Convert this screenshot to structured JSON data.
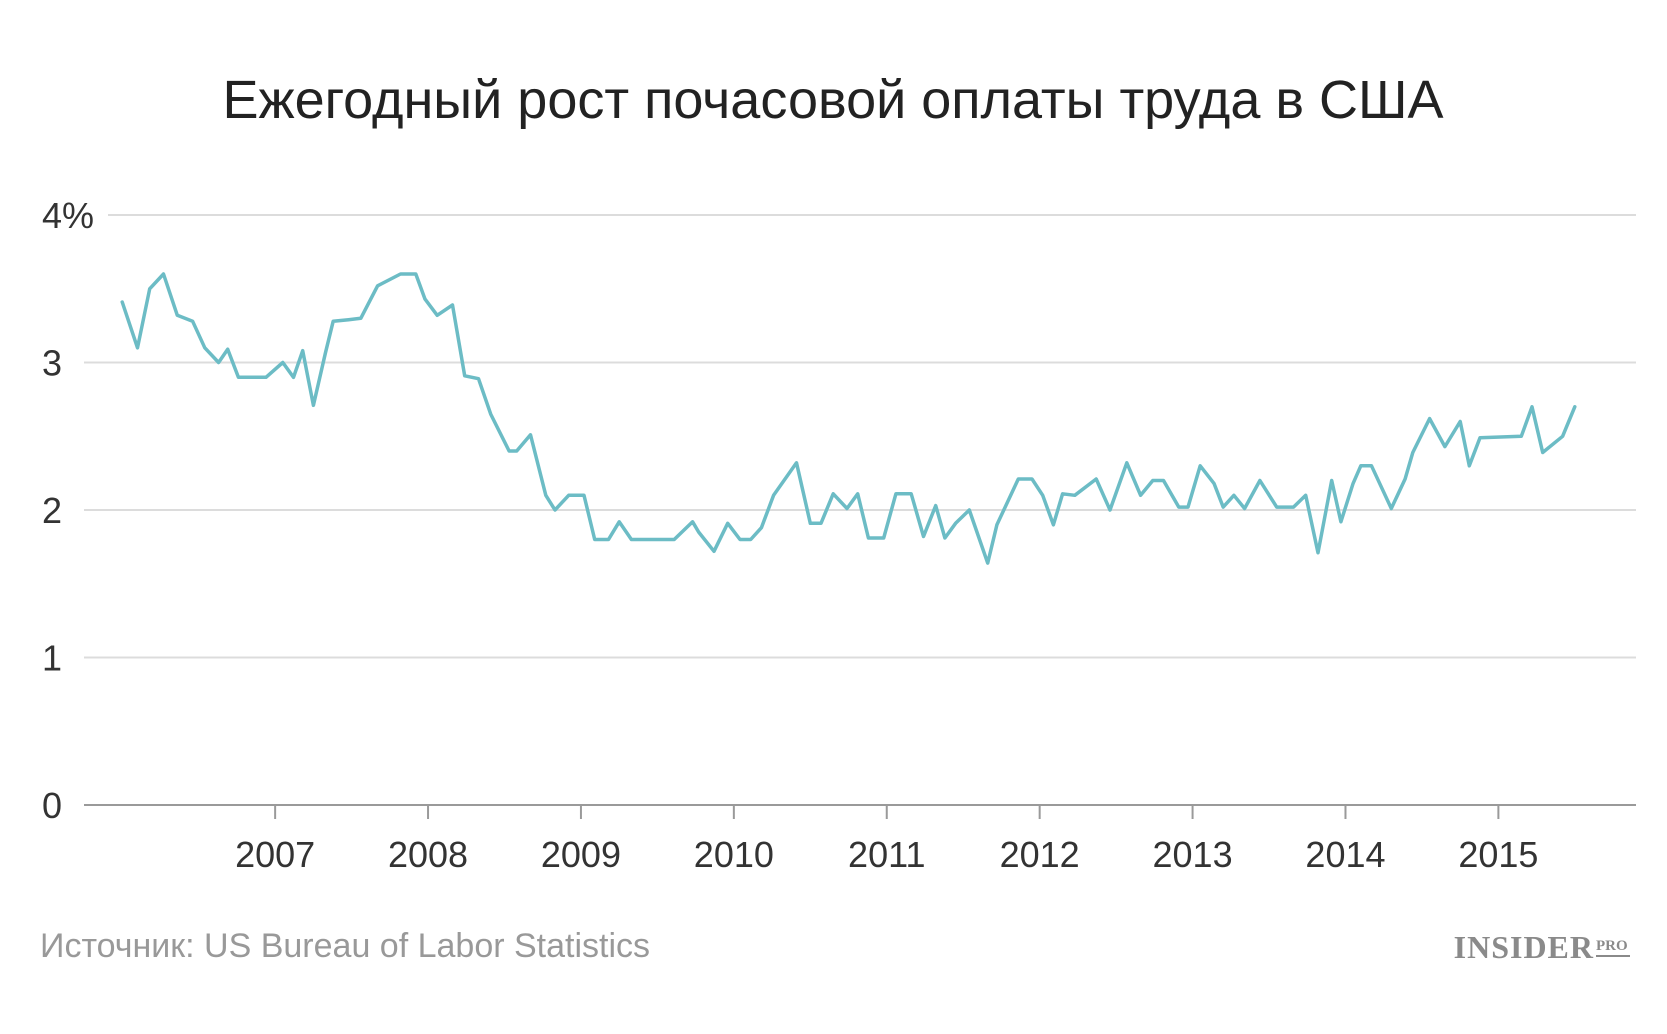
{
  "chart_data": {
    "type": "line",
    "title": "Ежегодный рост почасовой оплаты труда в США",
    "source": "Источник: US Bureau of Labor Statistics",
    "logo": {
      "main": "INSIDER",
      "sub": "PRO"
    },
    "ylim": [
      0,
      4
    ],
    "yticks": [
      {
        "value": 0,
        "label": "0"
      },
      {
        "value": 1,
        "label": "1"
      },
      {
        "value": 2,
        "label": "2"
      },
      {
        "value": 3,
        "label": "3"
      },
      {
        "value": 4,
        "label": "4%"
      }
    ],
    "xlim": [
      2005.75,
      2015.9
    ],
    "xticks": [
      {
        "value": 2007,
        "label": "2007"
      },
      {
        "value": 2008,
        "label": "2008"
      },
      {
        "value": 2009,
        "label": "2009"
      },
      {
        "value": 2010,
        "label": "2010"
      },
      {
        "value": 2011,
        "label": "2011"
      },
      {
        "value": 2012,
        "label": "2012"
      },
      {
        "value": 2013,
        "label": "2013"
      },
      {
        "value": 2014,
        "label": "2014"
      },
      {
        "value": 2015,
        "label": "2015"
      }
    ],
    "grid": true,
    "line_color": "#6cbcc5",
    "series": [
      {
        "x": [
          2006.0,
          2006.1,
          2006.18,
          2006.27,
          2006.36,
          2006.46,
          2006.54,
          2006.63,
          2006.69,
          2006.76,
          2006.86,
          2006.94,
          2007.05,
          2007.12,
          2007.18,
          2007.25,
          2007.33,
          2007.38,
          2007.48,
          2007.56,
          2007.67,
          2007.82,
          2007.92,
          2007.98,
          2008.06,
          2008.16,
          2008.24,
          2008.33,
          2008.41,
          2008.53,
          2008.58,
          2008.67,
          2008.77,
          2008.83,
          2008.92,
          2009.02,
          2009.09,
          2009.18,
          2009.25,
          2009.33,
          2009.45,
          2009.61,
          2009.73,
          2009.77,
          2009.87,
          2009.96,
          2010.04,
          2010.11,
          2010.18,
          2010.26,
          2010.41,
          2010.5,
          2010.57,
          2010.65,
          2010.74,
          2010.81,
          2010.88,
          2010.98,
          2011.06,
          2011.16,
          2011.24,
          2011.32,
          2011.38,
          2011.45,
          2011.54,
          2011.66,
          2011.72,
          2011.86,
          2011.95,
          2012.02,
          2012.09,
          2012.15,
          2012.23,
          2012.37,
          2012.46,
          2012.57,
          2012.66,
          2012.74,
          2012.81,
          2012.91,
          2012.97,
          2013.05,
          2013.14,
          2013.2,
          2013.27,
          2013.34,
          2013.44,
          2013.55,
          2013.66,
          2013.74,
          2013.82,
          2013.91,
          2013.97,
          2014.05,
          2014.1,
          2014.17,
          2014.3,
          2014.39,
          2014.44,
          2014.55,
          2014.65,
          2014.75,
          2014.81,
          2014.88,
          2015.15,
          2015.22,
          2015.29,
          2015.42,
          2015.5
        ],
        "values": [
          3.41,
          3.1,
          3.5,
          3.6,
          3.32,
          3.28,
          3.1,
          3.0,
          3.09,
          2.9,
          2.9,
          2.9,
          3.0,
          2.9,
          3.08,
          2.71,
          3.07,
          3.28,
          3.29,
          3.3,
          3.52,
          3.6,
          3.6,
          3.43,
          3.32,
          3.39,
          2.91,
          2.89,
          2.65,
          2.4,
          2.4,
          2.51,
          2.1,
          2.0,
          2.1,
          2.1,
          1.8,
          1.8,
          1.92,
          1.8,
          1.8,
          1.8,
          1.92,
          1.85,
          1.72,
          1.91,
          1.8,
          1.8,
          1.88,
          2.1,
          2.32,
          1.91,
          1.91,
          2.11,
          2.01,
          2.11,
          1.81,
          1.81,
          2.11,
          2.11,
          1.82,
          2.03,
          1.81,
          1.91,
          2.0,
          1.64,
          1.9,
          2.21,
          2.21,
          2.1,
          1.9,
          2.11,
          2.1,
          2.21,
          2.0,
          2.32,
          2.1,
          2.2,
          2.2,
          2.02,
          2.02,
          2.3,
          2.18,
          2.02,
          2.1,
          2.01,
          2.2,
          2.02,
          2.02,
          2.1,
          1.71,
          2.2,
          1.92,
          2.18,
          2.3,
          2.3,
          2.01,
          2.21,
          2.39,
          2.62,
          2.43,
          2.6,
          2.3,
          2.49,
          2.5,
          2.7,
          2.39,
          2.5,
          2.7
        ]
      }
    ]
  }
}
